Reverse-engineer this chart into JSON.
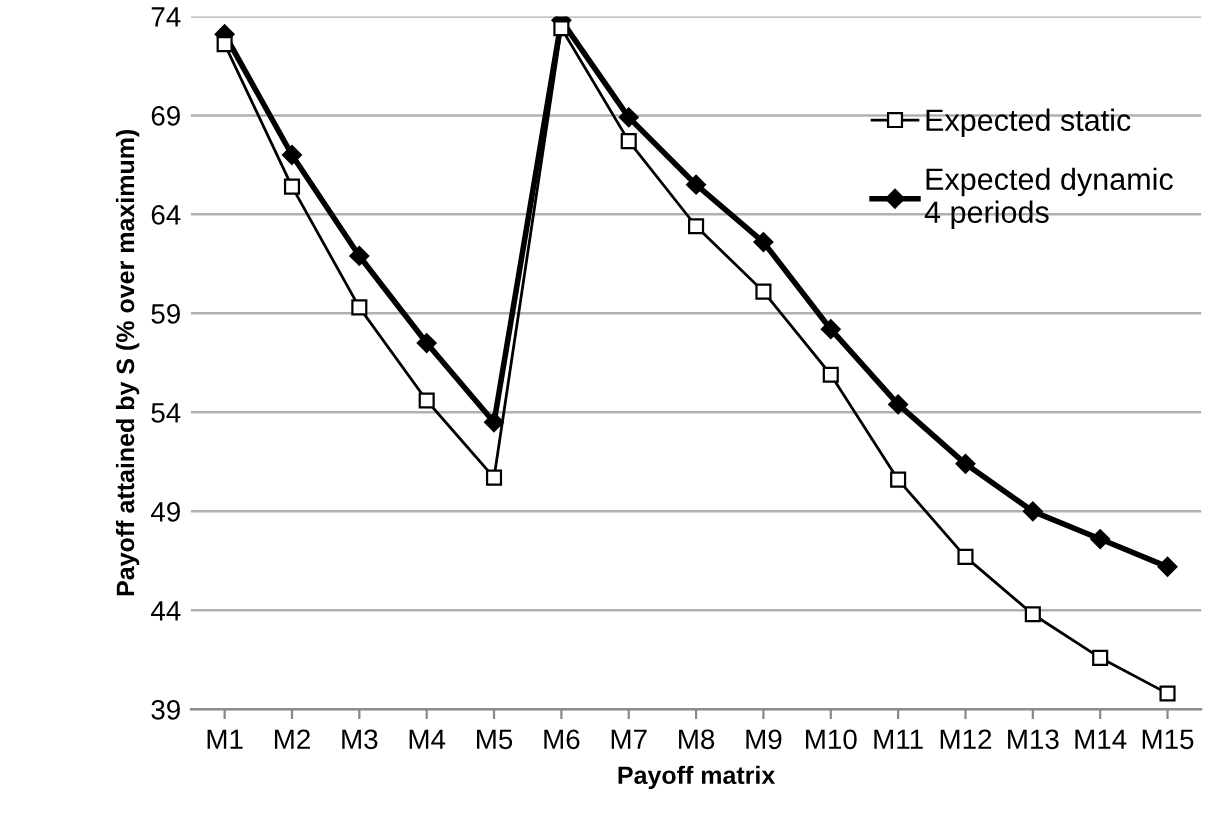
{
  "chart_data": {
    "type": "line",
    "xlabel": "Payoff matrix",
    "ylabel": "Payoff attained by S (% over maximum)",
    "categories": [
      "M1",
      "M2",
      "M3",
      "M4",
      "M5",
      "M6",
      "M7",
      "M8",
      "M9",
      "M10",
      "M11",
      "M12",
      "M13",
      "M14",
      "M15"
    ],
    "series": [
      {
        "name": "Expected static",
        "color": "#000000",
        "marker": "square",
        "values": [
          72.6,
          65.4,
          59.3,
          54.6,
          50.7,
          73.4,
          67.7,
          63.4,
          60.1,
          55.9,
          50.6,
          46.7,
          43.8,
          41.6,
          39.8
        ]
      },
      {
        "name": "Expected dynamic\n4 periods",
        "color": "#000000",
        "marker": "diamond",
        "values": [
          73.1,
          67.0,
          61.9,
          57.5,
          53.5,
          73.8,
          68.9,
          65.5,
          62.6,
          58.2,
          54.4,
          51.4,
          49.0,
          47.6,
          46.2
        ]
      }
    ],
    "ylim": [
      39,
      74
    ],
    "yticks": [
      39,
      44,
      49,
      54,
      59,
      64,
      69,
      74
    ],
    "grid": "y",
    "legend": "right",
    "line_style": "solid"
  }
}
